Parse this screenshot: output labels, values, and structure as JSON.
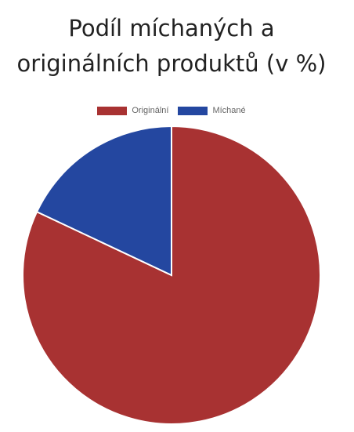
{
  "chart_data": {
    "type": "pie",
    "title_lines": [
      "Podíl míchaných a",
      "originálních produktů (v %)"
    ],
    "categories": [
      "Originální",
      "Míchané"
    ],
    "values": [
      82,
      18
    ],
    "colors": [
      "#A83232",
      "#2447A0"
    ],
    "legend_position": "top"
  }
}
